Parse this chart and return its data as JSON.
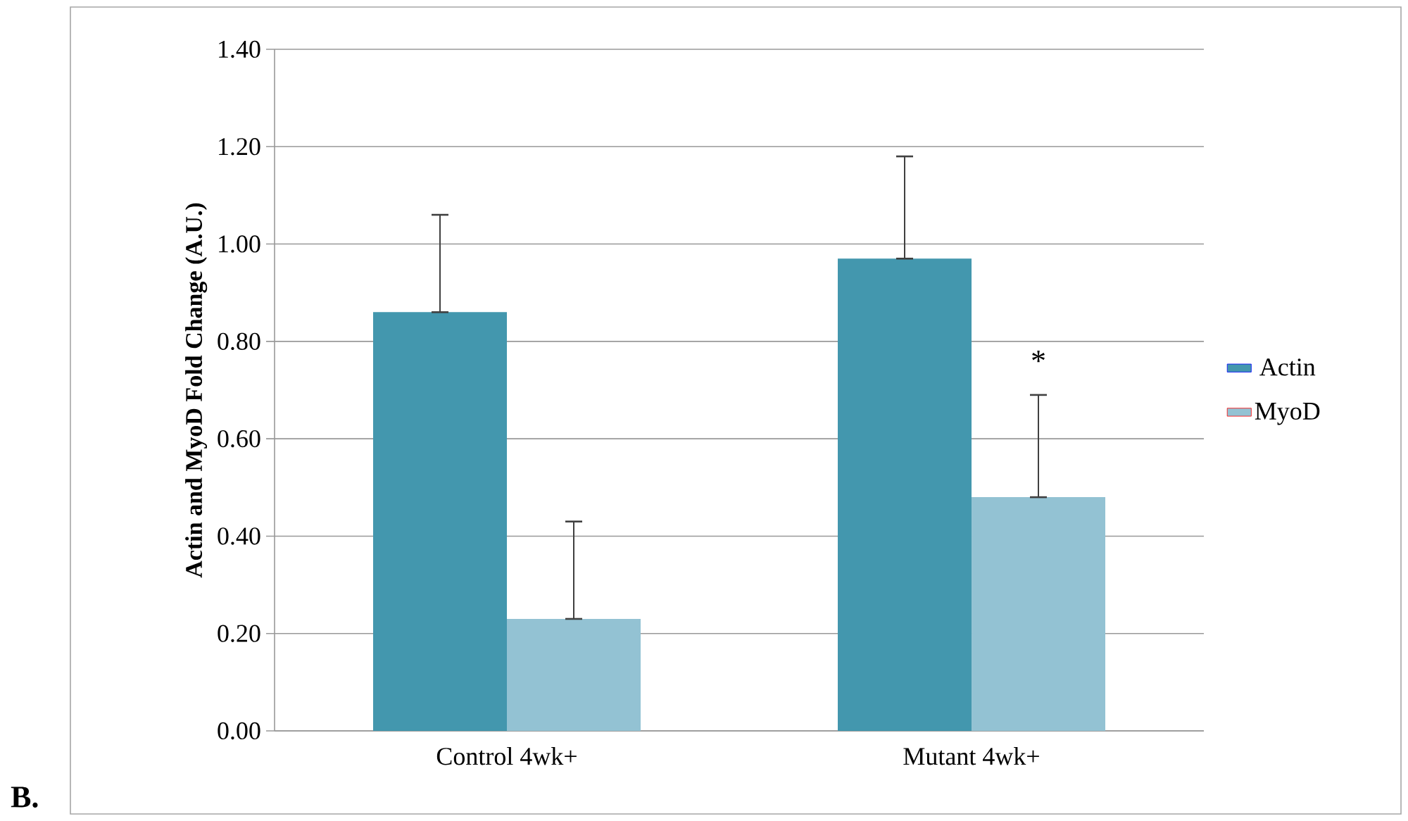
{
  "chart_data": {
    "type": "bar",
    "ylabel": "Actin and MyoD Fold Change (A.U.)",
    "categories": [
      "Control 4wk+",
      "Mutant 4wk+"
    ],
    "series": [
      {
        "name": "Actin",
        "color": "#4397ae",
        "values": [
          0.86,
          0.97
        ],
        "errors": [
          [
            0.86,
            1.06
          ],
          [
            0.97,
            1.18
          ]
        ]
      },
      {
        "name": "MyoD",
        "color": "#93c2d3",
        "values": [
          0.23,
          0.48
        ],
        "errors": [
          [
            0.23,
            0.43
          ],
          [
            0.48,
            0.69
          ]
        ]
      }
    ],
    "ylim": [
      0,
      1.4
    ],
    "yticks": [
      {
        "value": 0,
        "label": "0.00"
      },
      {
        "value": 0.2,
        "label": "0.20"
      },
      {
        "value": 0.4,
        "label": "0.40"
      },
      {
        "value": 0.6,
        "label": "0.60"
      },
      {
        "value": 0.8,
        "label": "0.80"
      },
      {
        "value": 1.0,
        "label": "1.00"
      },
      {
        "value": 1.2,
        "label": "1.20"
      },
      {
        "value": 1.4,
        "label": "1.40"
      }
    ],
    "grid": "y",
    "legend": "right",
    "annotations": [
      {
        "text": "*",
        "x": "Mutant 4wk+",
        "y": 0.76
      },
      "B."
    ]
  }
}
